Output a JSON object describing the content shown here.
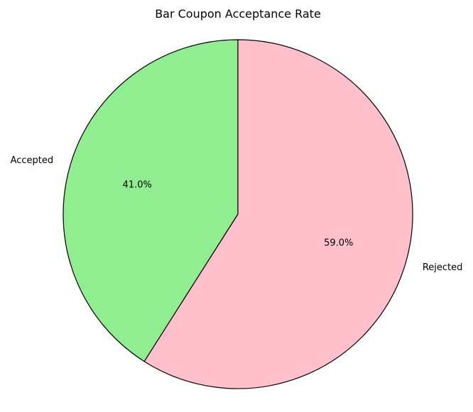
{
  "chart_data": {
    "type": "pie",
    "title": "Bar Coupon Acceptance Rate",
    "slices": [
      {
        "label": "Accepted",
        "value": 41.0,
        "pct_label": "41.0%",
        "color": "#90ee90"
      },
      {
        "label": "Rejected",
        "value": 59.0,
        "pct_label": "59.0%",
        "color": "#ffc0cb"
      }
    ],
    "start_angle_deg": 90,
    "direction": "counterclockwise",
    "edge_color": "#000000",
    "legend": false
  }
}
